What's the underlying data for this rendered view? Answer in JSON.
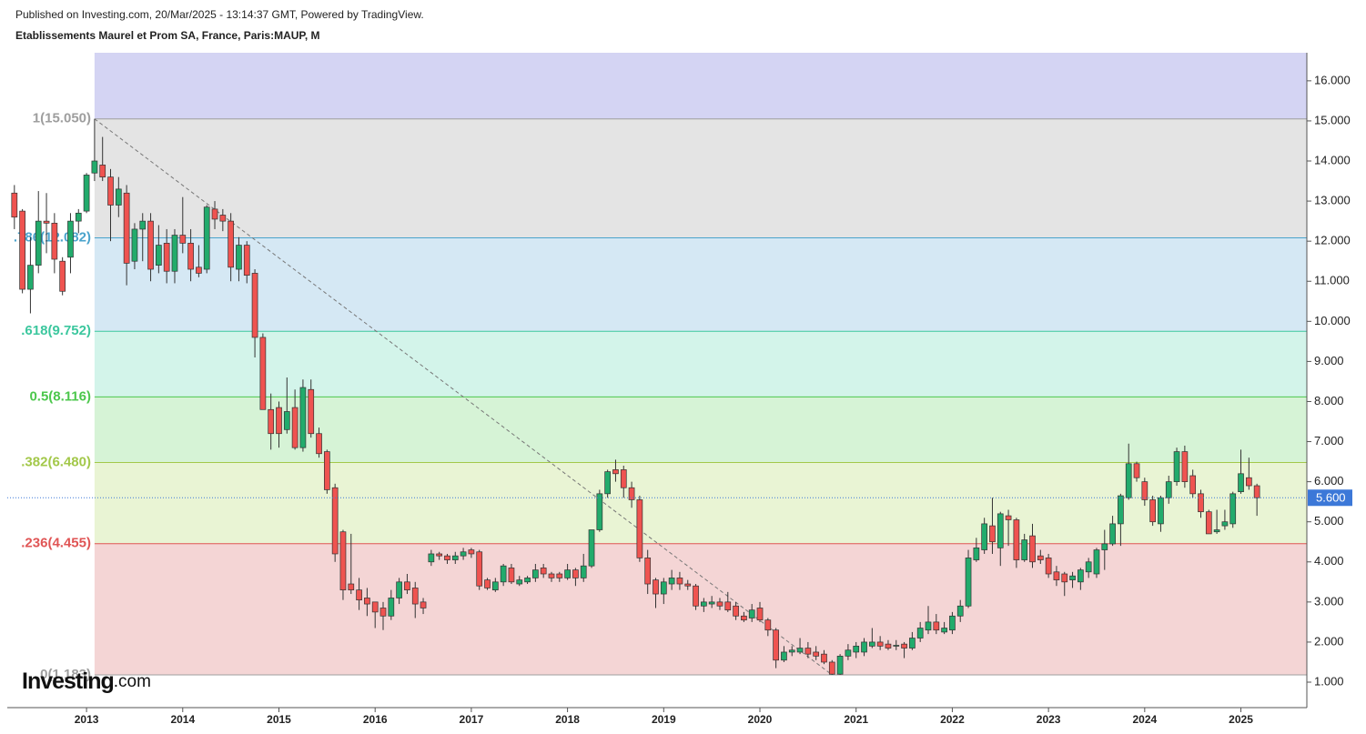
{
  "header": {
    "published": "Published on Investing.com, 20/Mar/2025 - 13:14:37 GMT, Powered by TradingView.",
    "title": "Etablissements Maurel et Prom SA, France, Paris:MAUP, M"
  },
  "logo": {
    "brand": "Investing",
    "suffix": ".com"
  },
  "chart_data": {
    "type": "candlestick",
    "x": [
      "2012-03",
      "2012-04",
      "2012-05",
      "2012-06",
      "2012-07",
      "2012-08",
      "2012-09",
      "2012-10",
      "2012-11",
      "2012-12",
      "2013-01",
      "2013-02",
      "2013-03",
      "2013-04",
      "2013-05",
      "2013-06",
      "2013-07",
      "2013-08",
      "2013-09",
      "2013-10",
      "2013-11",
      "2013-12",
      "2014-01",
      "2014-02",
      "2014-03",
      "2014-04",
      "2014-05",
      "2014-06",
      "2014-07",
      "2014-08",
      "2014-09",
      "2014-10",
      "2014-11",
      "2014-12",
      "2015-01",
      "2015-02",
      "2015-03",
      "2015-04",
      "2015-05",
      "2015-06",
      "2015-07",
      "2015-08",
      "2015-09",
      "2015-10",
      "2015-11",
      "2015-12",
      "2016-01",
      "2016-02",
      "2016-03",
      "2016-04",
      "2016-05",
      "2016-06",
      "2016-07",
      "2016-08",
      "2016-09",
      "2016-10",
      "2016-11",
      "2016-12",
      "2017-01",
      "2017-02",
      "2017-03",
      "2017-04",
      "2017-05",
      "2017-06",
      "2017-07",
      "2017-08",
      "2017-09",
      "2017-10",
      "2017-11",
      "2017-12",
      "2018-01",
      "2018-02",
      "2018-03",
      "2018-04",
      "2018-05",
      "2018-06",
      "2018-07",
      "2018-08",
      "2018-09",
      "2018-10",
      "2018-11",
      "2018-12",
      "2019-01",
      "2019-02",
      "2019-03",
      "2019-04",
      "2019-05",
      "2019-06",
      "2019-07",
      "2019-08",
      "2019-09",
      "2019-10",
      "2019-11",
      "2019-12",
      "2020-01",
      "2020-02",
      "2020-03",
      "2020-04",
      "2020-05",
      "2020-06",
      "2020-07",
      "2020-08",
      "2020-09",
      "2020-10",
      "2020-11",
      "2020-12",
      "2021-01",
      "2021-02",
      "2021-03",
      "2021-04",
      "2021-05",
      "2021-06",
      "2021-07",
      "2021-08",
      "2021-09",
      "2021-10",
      "2021-11",
      "2021-12",
      "2022-01",
      "2022-02",
      "2022-03",
      "2022-04",
      "2022-05",
      "2022-06",
      "2022-07",
      "2022-08",
      "2022-09",
      "2022-10",
      "2022-11",
      "2022-12",
      "2023-01",
      "2023-02",
      "2023-03",
      "2023-04",
      "2023-05",
      "2023-06",
      "2023-07",
      "2023-08",
      "2023-09",
      "2023-10",
      "2023-11",
      "2023-12",
      "2024-01",
      "2024-02",
      "2024-03",
      "2024-04",
      "2024-05",
      "2024-06",
      "2024-07",
      "2024-08",
      "2024-09",
      "2024-10",
      "2024-11",
      "2024-12",
      "2025-01",
      "2025-02",
      "2025-03"
    ],
    "open": [
      14.25,
      13.2,
      12.75,
      10.8,
      11.4,
      12.5,
      12.45,
      11.5,
      11.6,
      12.5,
      12.75,
      13.7,
      13.9,
      13.6,
      12.9,
      13.2,
      11.5,
      12.3,
      12.5,
      11.4,
      11.95,
      11.25,
      12.15,
      11.95,
      11.35,
      11.3,
      12.8,
      12.65,
      12.5,
      11.3,
      11.9,
      11.2,
      9.6,
      7.8,
      7.85,
      7.3,
      7.85,
      6.85,
      8.3,
      7.2,
      6.75,
      5.85,
      4.75,
      3.45,
      3.3,
      3.1,
      3.0,
      2.85,
      2.65,
      3.1,
      3.5,
      3.35,
      3.0,
      4.0,
      4.2,
      4.15,
      4.05,
      4.15,
      4.3,
      4.25,
      3.55,
      3.3,
      3.5,
      3.85,
      3.45,
      3.5,
      3.6,
      3.85,
      3.7,
      3.7,
      3.6,
      3.8,
      3.6,
      3.9,
      4.8,
      5.7,
      6.3,
      6.3,
      5.85,
      5.55,
      4.1,
      3.55,
      3.2,
      3.45,
      3.6,
      3.45,
      3.4,
      2.9,
      2.95,
      3.0,
      3.0,
      2.9,
      2.65,
      2.6,
      2.85,
      2.55,
      2.3,
      1.55,
      1.75,
      1.75,
      1.85,
      1.75,
      1.7,
      1.5,
      1.2,
      1.65,
      1.75,
      1.75,
      1.9,
      2.0,
      1.95,
      1.9,
      1.95,
      1.85,
      2.1,
      2.3,
      2.5,
      2.25,
      2.3,
      2.65,
      2.9,
      4.05,
      4.3,
      4.9,
      4.35,
      5.15,
      5.05,
      4.05,
      4.65,
      4.15,
      4.1,
      3.75,
      3.7,
      3.55,
      3.5,
      3.75,
      3.7,
      4.3,
      4.45,
      4.95,
      5.6,
      6.45,
      6.0,
      5.55,
      4.95,
      5.6,
      6.0,
      6.75,
      6.15,
      5.7,
      5.25,
      4.75,
      4.9,
      4.95,
      5.75,
      6.1,
      5.9
    ],
    "high": [
      14.25,
      13.4,
      12.8,
      12.1,
      13.25,
      13.2,
      12.7,
      11.6,
      12.7,
      12.8,
      13.7,
      15.05,
      14.6,
      13.8,
      13.6,
      13.4,
      12.45,
      12.7,
      12.7,
      12.4,
      12.3,
      12.3,
      13.1,
      12.3,
      11.9,
      12.9,
      13.0,
      12.8,
      12.7,
      12.1,
      12.0,
      11.3,
      9.7,
      8.2,
      8.0,
      8.6,
      8.3,
      8.55,
      8.55,
      7.35,
      6.8,
      5.95,
      4.8,
      4.7,
      3.6,
      3.35,
      3.0,
      3.0,
      3.3,
      3.6,
      3.7,
      3.5,
      3.1,
      4.3,
      4.25,
      4.2,
      4.25,
      4.35,
      4.35,
      4.3,
      3.6,
      3.6,
      3.95,
      3.95,
      3.65,
      3.65,
      3.95,
      3.95,
      3.75,
      3.75,
      3.95,
      3.85,
      4.2,
      4.8,
      5.8,
      6.3,
      6.55,
      6.4,
      6.0,
      5.65,
      4.3,
      3.6,
      3.6,
      3.8,
      3.75,
      3.55,
      3.45,
      3.1,
      3.15,
      3.1,
      3.25,
      3.0,
      2.75,
      2.95,
      3.0,
      2.6,
      2.35,
      1.9,
      1.9,
      2.1,
      2.0,
      1.9,
      1.8,
      1.55,
      1.7,
      1.95,
      2.0,
      2.1,
      2.35,
      2.15,
      2.05,
      2.05,
      2.0,
      2.25,
      2.5,
      2.9,
      2.7,
      2.5,
      2.75,
      3.05,
      4.3,
      4.6,
      5.1,
      5.6,
      5.25,
      5.3,
      5.1,
      4.7,
      4.95,
      4.3,
      4.2,
      3.9,
      3.75,
      3.75,
      3.85,
      4.1,
      4.35,
      4.8,
      5.15,
      5.7,
      6.95,
      6.5,
      6.1,
      5.65,
      5.65,
      6.15,
      6.85,
      6.9,
      6.3,
      5.8,
      5.3,
      5.3,
      5.3,
      5.75,
      6.8,
      6.6,
      5.95
    ],
    "low": [
      13.15,
      12.3,
      10.7,
      10.2,
      11.2,
      11.7,
      11.2,
      10.65,
      11.2,
      12.2,
      12.7,
      13.5,
      13.5,
      12.0,
      12.6,
      10.9,
      11.3,
      11.5,
      11.0,
      11.2,
      10.95,
      10.95,
      11.7,
      11.0,
      11.1,
      11.2,
      12.3,
      12.25,
      11.0,
      11.0,
      10.95,
      9.1,
      7.8,
      6.8,
      6.85,
      7.2,
      6.8,
      6.75,
      7.1,
      6.6,
      5.7,
      4.0,
      3.05,
      3.2,
      2.8,
      2.65,
      2.35,
      2.3,
      2.55,
      2.95,
      3.2,
      2.6,
      2.7,
      3.9,
      4.05,
      3.95,
      3.95,
      4.05,
      4.1,
      3.3,
      3.3,
      3.25,
      3.4,
      3.45,
      3.4,
      3.45,
      3.5,
      3.6,
      3.5,
      3.5,
      3.55,
      3.4,
      3.5,
      3.85,
      4.75,
      5.6,
      6.0,
      5.6,
      5.35,
      4.0,
      3.2,
      2.85,
      2.95,
      3.3,
      3.3,
      3.3,
      2.8,
      2.75,
      2.85,
      2.8,
      2.75,
      2.55,
      2.5,
      2.5,
      2.5,
      2.15,
      1.35,
      1.5,
      1.65,
      1.7,
      1.6,
      1.55,
      1.45,
      1.183,
      1.183,
      1.55,
      1.6,
      1.65,
      1.85,
      1.8,
      1.8,
      1.8,
      1.6,
      1.8,
      2.0,
      2.2,
      2.2,
      2.2,
      2.2,
      2.5,
      2.85,
      4.0,
      4.2,
      4.2,
      3.9,
      4.4,
      3.85,
      4.0,
      3.85,
      3.95,
      3.6,
      3.4,
      3.15,
      3.35,
      3.3,
      3.6,
      3.6,
      3.8,
      4.4,
      4.4,
      5.55,
      6.0,
      5.4,
      4.9,
      4.75,
      5.45,
      5.9,
      5.85,
      5.6,
      5.1,
      4.7,
      4.7,
      4.8,
      4.85,
      5.7,
      5.8,
      5.15
    ],
    "close": [
      13.21,
      12.6,
      10.8,
      11.4,
      12.5,
      12.45,
      11.55,
      10.75,
      12.5,
      12.7,
      13.65,
      14.0,
      13.6,
      12.9,
      13.3,
      11.45,
      12.3,
      12.5,
      11.3,
      11.9,
      11.25,
      12.15,
      11.95,
      11.3,
      11.2,
      12.85,
      12.55,
      12.5,
      11.35,
      11.9,
      11.15,
      9.6,
      7.8,
      7.2,
      7.2,
      7.75,
      6.85,
      8.35,
      7.2,
      6.7,
      5.8,
      4.2,
      3.3,
      3.3,
      3.05,
      2.95,
      2.75,
      2.65,
      3.1,
      3.5,
      3.3,
      2.95,
      2.85,
      4.2,
      4.15,
      4.05,
      4.15,
      4.25,
      4.2,
      3.4,
      3.35,
      3.5,
      3.9,
      3.5,
      3.55,
      3.6,
      3.8,
      3.7,
      3.6,
      3.6,
      3.8,
      3.6,
      3.9,
      4.8,
      5.7,
      6.25,
      6.2,
      5.85,
      5.55,
      4.1,
      3.45,
      3.2,
      3.5,
      3.6,
      3.45,
      3.4,
      2.9,
      3.0,
      3.0,
      2.9,
      2.8,
      2.65,
      2.55,
      2.8,
      2.55,
      2.3,
      1.55,
      1.75,
      1.8,
      1.85,
      1.7,
      1.65,
      1.5,
      1.2,
      1.65,
      1.8,
      1.9,
      2.0,
      2.0,
      1.9,
      1.85,
      1.92,
      1.85,
      2.1,
      2.35,
      2.5,
      2.3,
      2.35,
      2.65,
      2.9,
      4.1,
      4.35,
      4.95,
      4.5,
      5.2,
      5.05,
      4.05,
      4.55,
      4.0,
      4.05,
      3.7,
      3.55,
      3.5,
      3.65,
      3.8,
      4.0,
      4.3,
      4.45,
      4.95,
      5.65,
      6.45,
      6.1,
      5.55,
      5.0,
      5.6,
      6.0,
      6.75,
      6.0,
      5.7,
      5.25,
      4.7,
      4.8,
      5.0,
      5.7,
      6.2,
      5.9,
      5.6
    ],
    "up_color": "#22ab6c",
    "down_color": "#ef5350",
    "xlim": [
      "2012-03",
      "2025-09"
    ],
    "xticks": [
      2013,
      2014,
      2015,
      2016,
      2017,
      2018,
      2019,
      2020,
      2021,
      2022,
      2023,
      2024,
      2025
    ],
    "ylim": [
      0.365,
      16.7
    ],
    "yticks": [
      {
        "value": 1,
        "label": "1.000"
      },
      {
        "value": 2,
        "label": "2.000"
      },
      {
        "value": 3,
        "label": "3.000"
      },
      {
        "value": 4,
        "label": "4.000"
      },
      {
        "value": 5,
        "label": "5.000"
      },
      {
        "value": 6,
        "label": "6.000"
      },
      {
        "value": 7,
        "label": "7.000"
      },
      {
        "value": 8,
        "label": "8.000"
      },
      {
        "value": 9,
        "label": "9.000"
      },
      {
        "value": 10,
        "label": "10.000"
      },
      {
        "value": 11,
        "label": "11.000"
      },
      {
        "value": 12,
        "label": "12.000"
      },
      {
        "value": 13,
        "label": "13.000"
      },
      {
        "value": 14,
        "label": "14.000"
      },
      {
        "value": 15,
        "label": "15.000"
      },
      {
        "value": 16,
        "label": "16.000"
      }
    ],
    "last_price": {
      "value": 5.6,
      "label": "5.600",
      "color": "#3c78d8"
    },
    "fib": {
      "start": "2013-02",
      "end": "2020-10",
      "above_fill": "#d4d4f3",
      "levels": [
        {
          "value": 15.05,
          "label": "1(15.050)",
          "color": "#9e9e9e",
          "fill": "#e4e4e4"
        },
        {
          "value": 12.082,
          "label": ".786(12.082)",
          "color": "#4aa3cc",
          "fill": "#d5e8f4"
        },
        {
          "value": 9.752,
          "label": ".618(9.752)",
          "color": "#3cc79e",
          "fill": "#d3f4ea"
        },
        {
          "value": 8.116,
          "label": "0.5(8.116)",
          "color": "#4cc74c",
          "fill": "#d6f3d6"
        },
        {
          "value": 6.48,
          "label": ".382(6.480)",
          "color": "#a3c84a",
          "fill": "#e9f4d4"
        },
        {
          "value": 4.455,
          "label": ".236(4.455)",
          "color": "#e05555",
          "fill": "#f4d5d5"
        },
        {
          "value": 1.183,
          "label": "0(1.183)",
          "color": "#9e9e9e"
        }
      ]
    }
  }
}
